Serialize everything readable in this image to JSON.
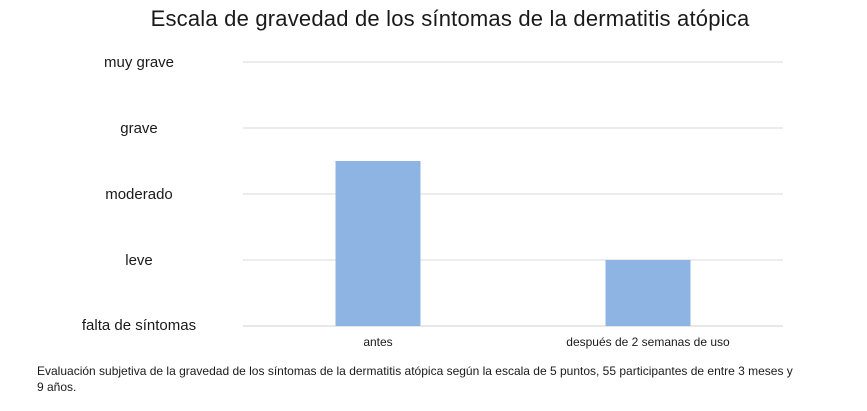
{
  "chart_data": {
    "type": "bar",
    "title": "Escala de gravedad de los síntomas de la dermatitis atópica",
    "categories": [
      "antes",
      "después de 2 semanas de uso"
    ],
    "values": [
      2.5,
      1.0
    ],
    "y_ticks": [
      "falta de síntomas",
      "leve",
      "moderado",
      "grave",
      "muy grave"
    ],
    "ylim": [
      0,
      4
    ],
    "grid": true,
    "bar_color": "#8EB4E3",
    "grid_color": "#D9D9D9"
  },
  "caption": "Evaluación subjetiva de la gravedad de los síntomas de la dermatitis atópica según la escala de 5 puntos, 55 participantes de entre 3 meses y 9 años."
}
